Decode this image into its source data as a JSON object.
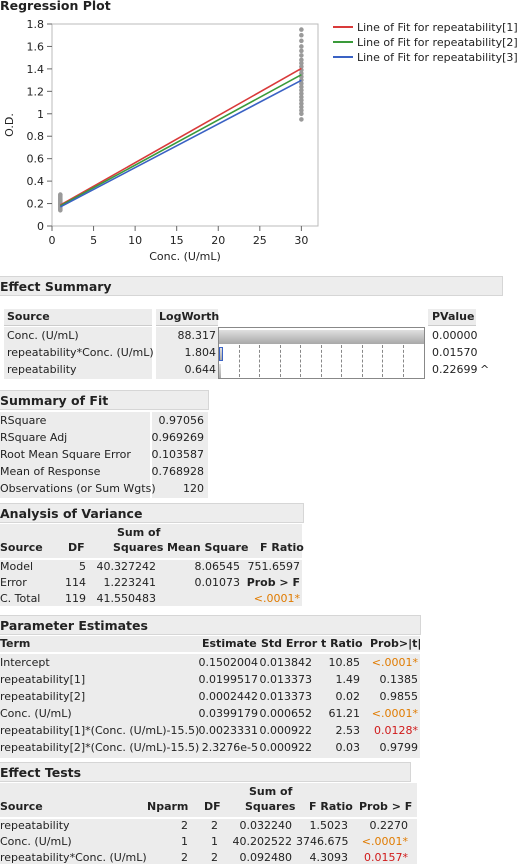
{
  "regression_plot": {
    "title": "Regression Plot",
    "chart_data": {
      "type": "line",
      "xlabel": "Conc. (U/mL)",
      "ylabel": "O.D.",
      "xlim": [
        0,
        32
      ],
      "ylim": [
        0,
        1.8
      ],
      "x_ticks": [
        "0",
        "5",
        "10",
        "15",
        "20",
        "25",
        "30"
      ],
      "y_ticks": [
        "0",
        "0.2",
        "0.4",
        "0.6",
        "0.8",
        "1",
        "1.2",
        "1.4",
        "1.6",
        "1.8"
      ],
      "grid": false,
      "legend_position": "top-right",
      "series": [
        {
          "name": "Line of Fit for repeatability[1]",
          "color": "#d93a3a",
          "x": [
            1,
            30
          ],
          "y": [
            0.186,
            1.404
          ]
        },
        {
          "name": "Line of Fit for repeatability[2]",
          "color": "#3a9a3a",
          "x": [
            1,
            30
          ],
          "y": [
            0.18,
            1.348
          ]
        },
        {
          "name": "Line of Fit for repeatability[3]",
          "color": "#3a62c4",
          "x": [
            1,
            30
          ],
          "y": [
            0.17,
            1.298
          ]
        }
      ],
      "points_color": "#9a9a9a",
      "scatter": {
        "x1": {
          "x": 1,
          "y": [
            0.14,
            0.15,
            0.16,
            0.17,
            0.18,
            0.19,
            0.2,
            0.21,
            0.22,
            0.23,
            0.24,
            0.25,
            0.26,
            0.27,
            0.28
          ]
        },
        "x30": {
          "x": 30,
          "y": [
            0.95,
            1.0,
            1.03,
            1.06,
            1.09,
            1.12,
            1.15,
            1.18,
            1.21,
            1.24,
            1.27,
            1.3,
            1.33,
            1.36,
            1.39,
            1.42,
            1.45,
            1.48,
            1.52,
            1.56,
            1.6,
            1.65,
            1.7,
            1.75
          ]
        }
      }
    }
  },
  "effect_summary": {
    "title": "Effect Summary",
    "headers": {
      "source": "Source",
      "logworth": "LogWorth",
      "pvalue": "PValue"
    },
    "rows": [
      {
        "source": "Conc. (U/mL)",
        "logworth": "88.317",
        "pvalue": "0.00000",
        "bar_fraction": 1.0,
        "mark": ""
      },
      {
        "source": "repeatability*Conc. (U/mL)",
        "logworth": "1.804",
        "pvalue": "0.01570",
        "bar_fraction": 0.02,
        "mark": ""
      },
      {
        "source": "repeatability",
        "logworth": "0.644",
        "pvalue": "0.22699",
        "bar_fraction": 0.007,
        "mark": "^"
      }
    ]
  },
  "summary_of_fit": {
    "title": "Summary of Fit",
    "rows": [
      {
        "label": "RSquare",
        "value": "0.97056"
      },
      {
        "label": "RSquare Adj",
        "value": "0.969269"
      },
      {
        "label": "Root Mean Square Error",
        "value": "0.103587"
      },
      {
        "label": "Mean of Response",
        "value": "0.768928"
      },
      {
        "label": "Observations (or Sum Wgts)",
        "value": "120"
      }
    ]
  },
  "anova": {
    "title": "Analysis of Variance",
    "headers": {
      "source": "Source",
      "df": "DF",
      "ss_top": "Sum of",
      "ss_bottom": "Squares",
      "ms": "Mean Square",
      "f": "F Ratio"
    },
    "rows": [
      {
        "source": "Model",
        "df": "5",
        "ss": "40.327242",
        "ms": "8.06545",
        "f": "751.6597"
      },
      {
        "source": "Error",
        "df": "114",
        "ss": "1.223241",
        "ms": "0.01073",
        "f": "Prob > F"
      },
      {
        "source": "C. Total",
        "df": "119",
        "ss": "41.550483",
        "ms": "",
        "f": "<.0001*"
      }
    ]
  },
  "parameter_estimates": {
    "title": "Parameter Estimates",
    "headers": {
      "term": "Term",
      "estimate": "Estimate",
      "std": "Std Error",
      "t": "t Ratio",
      "p": "Prob>|t|"
    },
    "rows": [
      {
        "term": "Intercept",
        "estimate": "0.1502004",
        "std": "0.013842",
        "t": "10.85",
        "p": "<.0001*",
        "pclass": "orange"
      },
      {
        "term": "repeatability[1]",
        "estimate": "0.0199517",
        "std": "0.013373",
        "t": "1.49",
        "p": "0.1385",
        "pclass": ""
      },
      {
        "term": "repeatability[2]",
        "estimate": "0.0002442",
        "std": "0.013373",
        "t": "0.02",
        "p": "0.9855",
        "pclass": ""
      },
      {
        "term": "Conc. (U/mL)",
        "estimate": "0.0399179",
        "std": "0.000652",
        "t": "61.21",
        "p": "<.0001*",
        "pclass": "orange"
      },
      {
        "term": "repeatability[1]*(Conc. (U/mL)-15.5)",
        "estimate": "0.0023331",
        "std": "0.000922",
        "t": "2.53",
        "p": "0.0128*",
        "pclass": "red"
      },
      {
        "term": "repeatability[2]*(Conc. (U/mL)-15.5)",
        "estimate": "2.3276e-5",
        "std": "0.000922",
        "t": "0.03",
        "p": "0.9799",
        "pclass": ""
      }
    ]
  },
  "effect_tests": {
    "title": "Effect Tests",
    "headers": {
      "source": "Source",
      "nparm": "Nparm",
      "df": "DF",
      "ss_top": "Sum of",
      "ss_bottom": "Squares",
      "f": "F Ratio",
      "p": "Prob > F"
    },
    "rows": [
      {
        "source": "repeatability",
        "nparm": "2",
        "df": "2",
        "ss": "0.032240",
        "f": "1.5023",
        "p": "0.2270",
        "pclass": ""
      },
      {
        "source": "Conc. (U/mL)",
        "nparm": "1",
        "df": "1",
        "ss": "40.202522",
        "f": "3746.675",
        "p": "<.0001*",
        "pclass": "orange"
      },
      {
        "source": "repeatability*Conc. (U/mL)",
        "nparm": "2",
        "df": "2",
        "ss": "0.092480",
        "f": "4.3093",
        "p": "0.0157*",
        "pclass": "red"
      }
    ]
  }
}
